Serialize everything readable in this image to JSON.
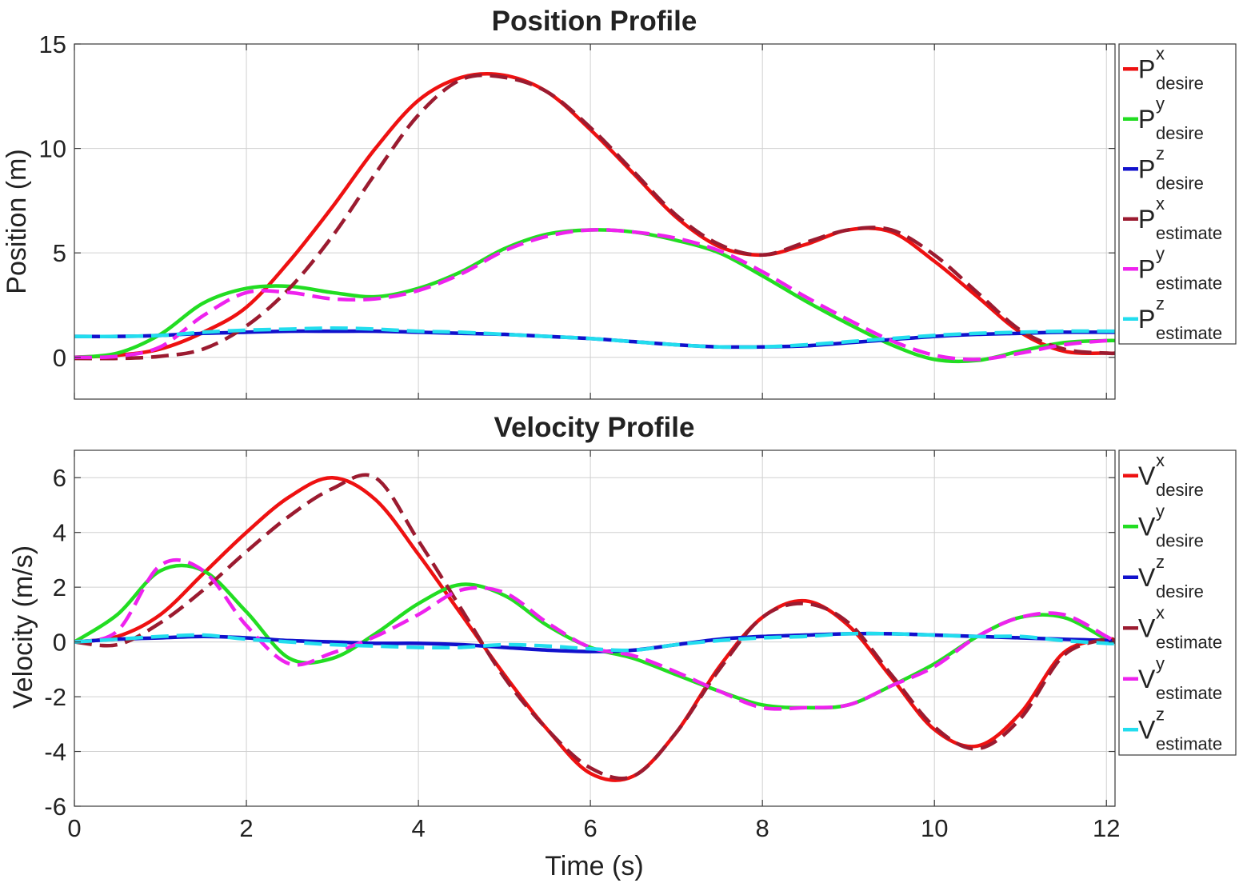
{
  "chart_data": [
    {
      "type": "line",
      "title": "Position Profile",
      "xlabel": "",
      "ylabel": "Position (m)",
      "xlim": [
        0,
        12.1
      ],
      "ylim": [
        -2,
        15
      ],
      "xticks": [
        0,
        2,
        4,
        6,
        8,
        10,
        12
      ],
      "xticklabels": [],
      "yticks": [
        0,
        5,
        10,
        15
      ],
      "yticklabels": [
        "0",
        "5",
        "10",
        "15"
      ],
      "grid": true,
      "legend_position": "outside-right",
      "x": [
        0,
        0.5,
        1,
        1.5,
        2,
        2.5,
        3,
        3.5,
        4,
        4.5,
        5,
        5.5,
        6,
        6.5,
        7,
        7.5,
        8,
        8.5,
        9,
        9.5,
        10,
        10.5,
        11,
        11.5,
        12,
        12.1
      ],
      "series": [
        {
          "name": "P",
          "sup": "x",
          "sub": "desire",
          "color": "#ee1111",
          "dash": "solid",
          "values": [
            0,
            0.1,
            0.4,
            1.2,
            2.4,
            4.6,
            7.2,
            10.0,
            12.3,
            13.4,
            13.5,
            12.7,
            10.9,
            8.8,
            6.7,
            5.3,
            4.9,
            5.4,
            6.1,
            6.0,
            4.6,
            2.9,
            1.2,
            0.3,
            0.2,
            0.2
          ]
        },
        {
          "name": "P",
          "sup": "y",
          "sub": "desire",
          "color": "#22dd22",
          "dash": "solid",
          "values": [
            0,
            0.2,
            1.1,
            2.6,
            3.3,
            3.4,
            3.1,
            2.9,
            3.3,
            4.1,
            5.2,
            5.9,
            6.1,
            6.0,
            5.6,
            5.0,
            3.9,
            2.7,
            1.6,
            0.6,
            -0.1,
            -0.15,
            0.3,
            0.7,
            0.8,
            0.8
          ]
        },
        {
          "name": "P",
          "sup": "z",
          "sub": "desire",
          "color": "#1111cc",
          "dash": "solid",
          "values": [
            1.0,
            1.0,
            1.05,
            1.15,
            1.2,
            1.25,
            1.25,
            1.25,
            1.2,
            1.15,
            1.1,
            1.0,
            0.9,
            0.75,
            0.6,
            0.5,
            0.5,
            0.55,
            0.7,
            0.85,
            1.0,
            1.1,
            1.15,
            1.2,
            1.2,
            1.2
          ]
        },
        {
          "name": "P",
          "sup": "x",
          "sub": "estimate",
          "color": "#9b1b30",
          "dash": "dashed",
          "values": [
            -0.05,
            -0.05,
            0.05,
            0.4,
            1.5,
            3.3,
            5.8,
            8.8,
            11.6,
            13.3,
            13.4,
            12.7,
            11.0,
            8.9,
            6.8,
            5.4,
            4.9,
            5.5,
            6.1,
            6.1,
            4.9,
            3.1,
            1.3,
            0.4,
            0.2,
            0.2
          ]
        },
        {
          "name": "P",
          "sup": "y",
          "sub": "estimate",
          "color": "#ee22ee",
          "dash": "dashed",
          "values": [
            0,
            0.05,
            0.5,
            2.0,
            3.1,
            3.1,
            2.8,
            2.8,
            3.2,
            4.0,
            5.1,
            5.8,
            6.1,
            6.0,
            5.7,
            5.1,
            4.1,
            2.9,
            1.8,
            0.8,
            0.1,
            -0.1,
            0.2,
            0.6,
            0.8,
            0.8
          ]
        },
        {
          "name": "P",
          "sup": "z",
          "sub": "estimate",
          "color": "#22ddee",
          "dash": "dashed",
          "values": [
            1.0,
            1.0,
            1.05,
            1.2,
            1.3,
            1.35,
            1.4,
            1.35,
            1.25,
            1.2,
            1.1,
            1.0,
            0.9,
            0.75,
            0.6,
            0.5,
            0.5,
            0.6,
            0.75,
            0.9,
            1.05,
            1.15,
            1.2,
            1.25,
            1.25,
            1.25
          ]
        }
      ]
    },
    {
      "type": "line",
      "title": "Velocity Profile",
      "xlabel": "Time (s)",
      "ylabel": "Velocity (m/s)",
      "xlim": [
        0,
        12.1
      ],
      "ylim": [
        -6,
        7
      ],
      "xticks": [
        0,
        2,
        4,
        6,
        8,
        10,
        12
      ],
      "xticklabels": [
        "0",
        "2",
        "4",
        "6",
        "8",
        "10",
        "12"
      ],
      "yticks": [
        -6,
        -4,
        -2,
        0,
        2,
        4,
        6
      ],
      "yticklabels": [
        "-6",
        "-4",
        "-2",
        "0",
        "2",
        "4",
        "6"
      ],
      "grid": true,
      "legend_position": "outside-right",
      "x": [
        0,
        0.5,
        1,
        1.5,
        2,
        2.5,
        3,
        3.5,
        4,
        4.5,
        5,
        5.5,
        6,
        6.5,
        7,
        7.5,
        8,
        8.5,
        9,
        9.5,
        10,
        10.5,
        11,
        11.5,
        12,
        12.1
      ],
      "series": [
        {
          "name": "V",
          "sup": "x",
          "sub": "desire",
          "color": "#ee1111",
          "dash": "solid",
          "values": [
            0,
            0.2,
            1.0,
            2.5,
            4.0,
            5.3,
            6.0,
            5.2,
            3.2,
            1.0,
            -1.2,
            -3.2,
            -4.8,
            -4.9,
            -3.3,
            -0.9,
            0.9,
            1.5,
            0.6,
            -1.3,
            -3.2,
            -3.8,
            -2.6,
            -0.4,
            0.1,
            0
          ]
        },
        {
          "name": "V",
          "sup": "y",
          "sub": "desire",
          "color": "#22dd22",
          "dash": "solid",
          "values": [
            0,
            1.0,
            2.6,
            2.6,
            1.1,
            -0.6,
            -0.6,
            0.3,
            1.4,
            2.1,
            1.7,
            0.6,
            -0.2,
            -0.6,
            -1.2,
            -1.8,
            -2.3,
            -2.4,
            -2.3,
            -1.6,
            -0.8,
            0.2,
            0.9,
            0.9,
            0.1,
            0
          ]
        },
        {
          "name": "V",
          "sup": "z",
          "sub": "desire",
          "color": "#1111cc",
          "dash": "solid",
          "values": [
            0,
            0.1,
            0.15,
            0.2,
            0.15,
            0.05,
            0,
            -0.05,
            -0.05,
            -0.1,
            -0.2,
            -0.3,
            -0.35,
            -0.3,
            -0.1,
            0.1,
            0.2,
            0.25,
            0.3,
            0.3,
            0.25,
            0.2,
            0.15,
            0.1,
            0.05,
            0
          ]
        },
        {
          "name": "V",
          "sup": "x",
          "sub": "estimate",
          "color": "#9b1b30",
          "dash": "dashed",
          "values": [
            0,
            -0.1,
            0.7,
            1.9,
            3.3,
            4.6,
            5.6,
            6.0,
            3.7,
            1.2,
            -1.3,
            -3.2,
            -4.6,
            -4.9,
            -3.3,
            -1.0,
            0.9,
            1.4,
            0.7,
            -1.2,
            -3.1,
            -3.9,
            -2.8,
            -0.5,
            0.1,
            0
          ]
        },
        {
          "name": "V",
          "sup": "y",
          "sub": "estimate",
          "color": "#ee22ee",
          "dash": "dashed",
          "values": [
            0,
            0.4,
            2.8,
            2.6,
            0.6,
            -0.8,
            -0.4,
            0.2,
            1.0,
            1.9,
            1.8,
            0.7,
            -0.2,
            -0.5,
            -1.1,
            -1.8,
            -2.4,
            -2.4,
            -2.3,
            -1.6,
            -0.9,
            0.2,
            0.9,
            1.0,
            0.2,
            0
          ]
        },
        {
          "name": "V",
          "sup": "z",
          "sub": "estimate",
          "color": "#22ddee",
          "dash": "dashed",
          "values": [
            0,
            0.1,
            0.2,
            0.25,
            0.1,
            0,
            -0.1,
            -0.15,
            -0.2,
            -0.2,
            -0.1,
            -0.15,
            -0.25,
            -0.3,
            -0.1,
            0.05,
            0.15,
            0.2,
            0.3,
            0.3,
            0.25,
            0.2,
            0.2,
            0.05,
            -0.05,
            -0.05
          ]
        }
      ]
    }
  ]
}
